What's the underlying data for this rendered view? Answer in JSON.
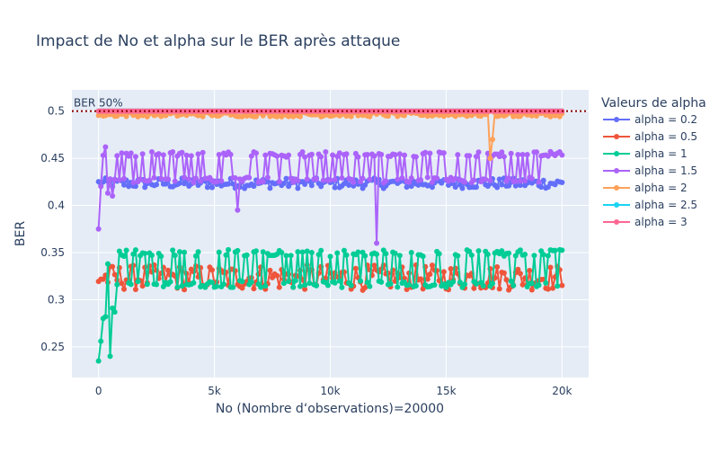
{
  "chart_data": {
    "type": "line",
    "title": "Impact de No et alpha sur le BER après attaque",
    "xlabel": "No (Nombre d‘observations)=20000",
    "ylabel": "BER",
    "xlim": [
      -1150,
      21150
    ],
    "ylim": [
      0.2175,
      0.5225
    ],
    "xticks": [
      0,
      5000,
      10000,
      15000,
      20000
    ],
    "xtick_labels": [
      "0",
      "5k",
      "10k",
      "15k",
      "20k"
    ],
    "yticks": [
      0.25,
      0.3,
      0.35,
      0.4,
      0.45,
      0.5
    ],
    "ytick_labels": [
      "0.25",
      "0.3",
      "0.35",
      "0.4",
      "0.45",
      "0.5"
    ],
    "grid": true,
    "legend_title": "Valeurs de alpha",
    "legend_position": "right",
    "hline": {
      "y": 0.5,
      "label": "BER 50%",
      "color": "#8b0000",
      "style": "dotted"
    },
    "series": [
      {
        "name": "alpha = 0.2",
        "color": "#636efa",
        "pattern": "band",
        "lo": 0.418,
        "hi": 0.429
      },
      {
        "name": "alpha = 0.5",
        "color": "#ef553b",
        "pattern": "band",
        "lo": 0.31,
        "hi": 0.337
      },
      {
        "name": "alpha = 1",
        "color": "#00cc96",
        "pattern": "alternate",
        "lo": 0.313,
        "hi": 0.353,
        "start_points": [
          0.235,
          0.256,
          0.28,
          0.282,
          0.338,
          0.24,
          0.291,
          0.287,
          0.316
        ]
      },
      {
        "name": "alpha = 1.5",
        "color": "#ab63fa",
        "pattern": "alternate",
        "lo": 0.424,
        "hi": 0.457,
        "start_points": [
          0.375,
          0.42,
          0.453,
          0.462,
          0.413,
          0.428,
          0.41
        ],
        "spikes": [
          [
            6000,
            0.395
          ],
          [
            12000,
            0.36
          ]
        ]
      },
      {
        "name": "alpha = 2",
        "color": "#ffa15a",
        "pattern": "band",
        "lo": 0.494,
        "hi": 0.499,
        "spikes": [
          [
            16900,
            0.45
          ],
          [
            17000,
            0.47
          ]
        ]
      },
      {
        "name": "alpha = 2.5",
        "color": "#19d3f3",
        "pattern": "flat",
        "lo": 0.5,
        "hi": 0.5
      },
      {
        "name": "alpha = 3",
        "color": "#ff6692",
        "pattern": "flat",
        "lo": 0.5,
        "hi": 0.5
      }
    ],
    "x_range": {
      "start": 0,
      "end": 20000,
      "step": 100
    }
  }
}
